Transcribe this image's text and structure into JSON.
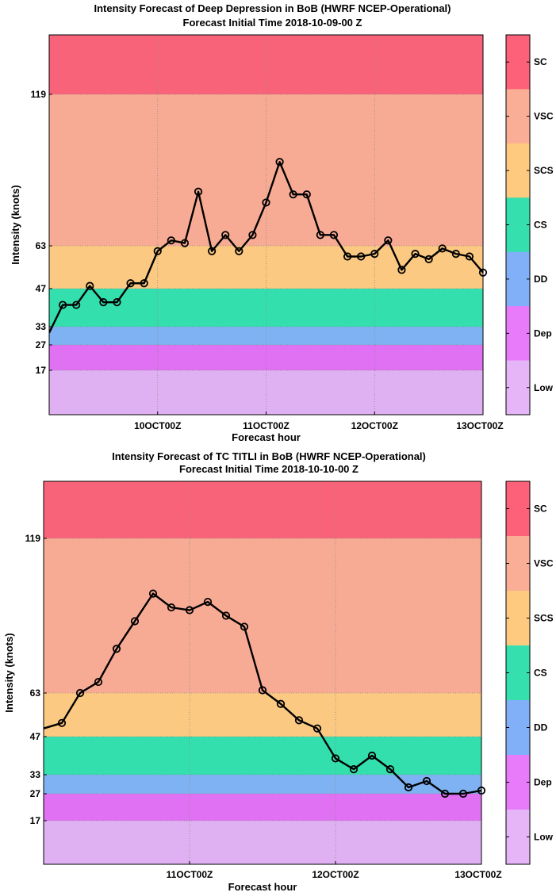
{
  "charts": [
    {
      "title": "Intensity Forecast of Deep Depression in BoB (HWRF NCEP-Operational)",
      "subtitle": "Forecast Initial Time 2018-10-09-00 Z",
      "xlabel": "Forecast hour",
      "ylabel": "Intensity (knots)",
      "xticks": [
        "10OCT00Z",
        "11OCT00Z",
        "12OCT00Z",
        "13OCT00Z"
      ],
      "yticks": [
        "119",
        "63",
        "47",
        "33",
        "27",
        "17"
      ]
    },
    {
      "title": "Intensity Forecast of TC TITLI in BoB (HWRF NCEP-Operational)",
      "subtitle": "Forecast Initial Time 2018-10-10-00 Z",
      "xlabel": "Forecast hour",
      "ylabel": "Intensity (knots)",
      "xticks": [
        "11OCT00Z",
        "12OCT00Z",
        "13OCT00Z"
      ],
      "yticks": [
        "119",
        "63",
        "47",
        "33",
        "27",
        "17"
      ]
    }
  ],
  "categories": [
    {
      "label": "SC",
      "min": 119,
      "color": "#f9637a",
      "cbcolor": "#fd6079"
    },
    {
      "label": "VSC",
      "min": 63,
      "max": 119,
      "color": "#f8ab94",
      "cbcolor": "#fbae96"
    },
    {
      "label": "SCS",
      "min": 47,
      "max": 63,
      "color": "#fbc981",
      "cbcolor": "#fdca7f"
    },
    {
      "label": "CS",
      "min": 33,
      "max": 47,
      "color": "#34dfae",
      "cbcolor": "#35e0ae"
    },
    {
      "label": "DD",
      "min": 27,
      "max": 33,
      "color": "#7fb2f2",
      "cbcolor": "#81b0f8"
    },
    {
      "label": "Dep",
      "min": 17,
      "max": 27,
      "color": "#df71f2",
      "cbcolor": "#e77bf9"
    },
    {
      "label": "Low",
      "max": 17,
      "color": "#dfb1f2",
      "cbcolor": "#e5b5f7"
    }
  ],
  "chart_data": [
    {
      "type": "line",
      "title": "Intensity Forecast of Deep Depression in BoB (HWRF NCEP-Operational)",
      "subtitle": "Forecast Initial Time 2018-10-09-00 Z",
      "xlabel": "Forecast hour",
      "ylabel": "Intensity (knots)",
      "x_units": "forecast hour from 2018-10-09-00 Z",
      "xlim": [
        0,
        96
      ],
      "x_ticks": [
        24,
        48,
        72,
        96
      ],
      "x_tick_labels": [
        "10OCT00Z",
        "11OCT00Z",
        "12OCT00Z",
        "13OCT00Z"
      ],
      "y_ticks": [
        17,
        27,
        33,
        47,
        63,
        119
      ],
      "grid": true,
      "series": [
        {
          "x": [
            0,
            3,
            6,
            9,
            12,
            15,
            18,
            21,
            24,
            27,
            30,
            33,
            36,
            39,
            42,
            45,
            48,
            51,
            54,
            57,
            60,
            63,
            66,
            69,
            72,
            75,
            78,
            81,
            84,
            87,
            90,
            93,
            96
          ],
          "y": [
            31,
            41,
            41,
            48,
            42,
            42,
            49,
            49,
            61,
            65,
            64,
            83,
            61,
            67,
            61,
            67,
            79,
            94,
            82,
            82,
            67,
            67,
            59,
            59,
            60,
            65,
            54,
            60,
            58,
            62,
            60,
            59,
            53
          ]
        }
      ]
    },
    {
      "type": "line",
      "title": "Intensity Forecast of TC TITLI in BoB (HWRF NCEP-Operational)",
      "subtitle": "Forecast Initial Time 2018-10-10-00 Z",
      "xlabel": "Forecast hour",
      "ylabel": "Intensity (knots)",
      "x_units": "forecast hour from 2018-10-10-00 Z",
      "xlim": [
        0,
        72
      ],
      "x_ticks": [
        24,
        48,
        72
      ],
      "x_tick_labels": [
        "11OCT00Z",
        "12OCT00Z",
        "13OCT00Z"
      ],
      "y_ticks": [
        17,
        27,
        33,
        47,
        63,
        119
      ],
      "grid": true,
      "series": [
        {
          "x": [
            0,
            3,
            6,
            9,
            12,
            15,
            18,
            21,
            24,
            27,
            30,
            33,
            36,
            39,
            42,
            45,
            48,
            51,
            54,
            57,
            60,
            63,
            66,
            69,
            72
          ],
          "y": [
            50,
            52,
            63,
            67,
            79,
            89,
            99,
            94,
            93,
            96,
            91,
            87,
            64,
            59,
            53,
            50,
            39,
            35,
            40,
            35,
            29,
            31,
            27,
            27,
            28
          ]
        }
      ]
    }
  ]
}
